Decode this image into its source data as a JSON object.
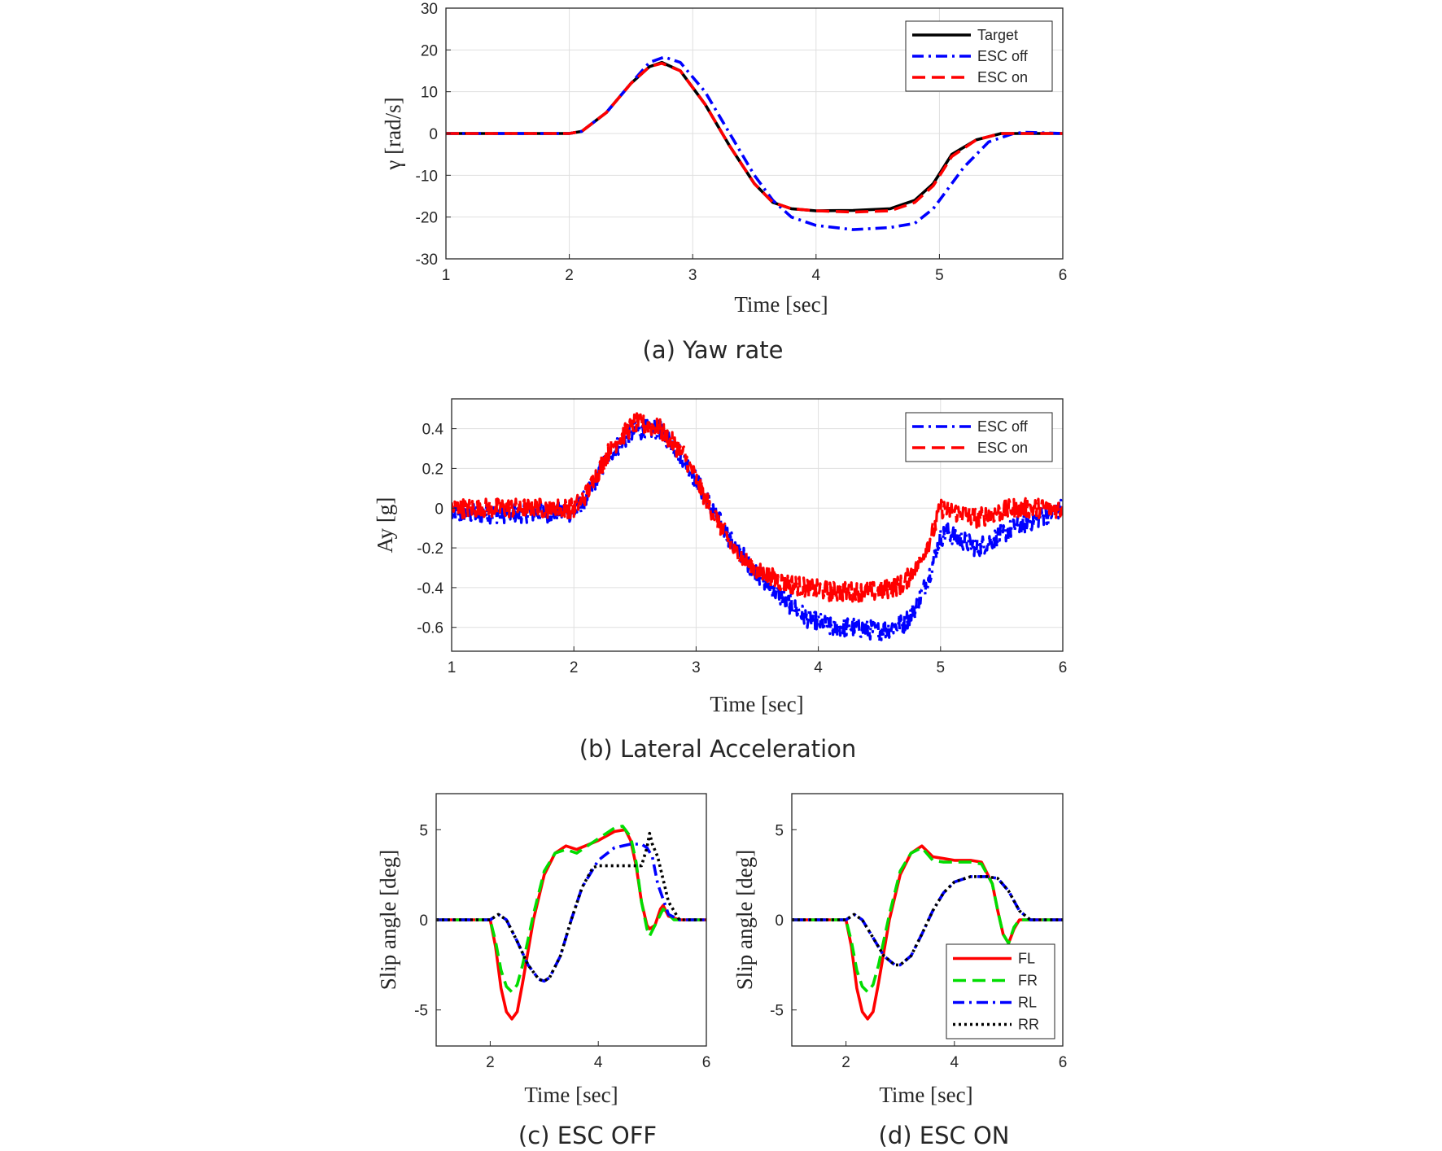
{
  "chart_data": [
    {
      "type": "line",
      "caption": "(a)  Yaw rate",
      "xlabel": "Time [sec]",
      "ylabel": "γ [rad/s]",
      "xlim": [
        1,
        6
      ],
      "ylim": [
        -30,
        30
      ],
      "xticks": [
        1,
        2,
        3,
        4,
        5,
        6
      ],
      "yticks": [
        -30,
        -20,
        -10,
        0,
        10,
        20,
        30
      ],
      "grid": true,
      "legend": "top-right",
      "series": [
        {
          "name": "Target",
          "color": "#000000",
          "style": "solid",
          "x": [
            1.0,
            2.0,
            2.1,
            2.3,
            2.5,
            2.65,
            2.75,
            2.9,
            3.1,
            3.3,
            3.5,
            3.65,
            3.8,
            4.0,
            4.3,
            4.6,
            4.8,
            4.95,
            5.1,
            5.3,
            5.5,
            5.7,
            6.0
          ],
          "y": [
            0,
            0,
            0.5,
            5,
            12,
            16,
            17,
            15,
            7,
            -3,
            -12,
            -16.5,
            -18,
            -18.5,
            -18.4,
            -18,
            -16,
            -12,
            -5,
            -1.5,
            0,
            0,
            0
          ]
        },
        {
          "name": "ESC off",
          "color": "#0000ff",
          "style": "dashdot",
          "x": [
            1.0,
            2.0,
            2.1,
            2.3,
            2.5,
            2.65,
            2.77,
            2.9,
            3.1,
            3.3,
            3.5,
            3.65,
            3.8,
            4.0,
            4.3,
            4.6,
            4.8,
            4.95,
            5.05,
            5.2,
            5.4,
            5.6,
            5.7,
            6.0
          ],
          "y": [
            0,
            0,
            0.5,
            5,
            12,
            17,
            18.3,
            17,
            10,
            0,
            -10,
            -16,
            -20,
            -22,
            -23,
            -22.5,
            -21.5,
            -18,
            -14,
            -8,
            -2,
            0,
            0.3,
            0
          ]
        },
        {
          "name": "ESC on",
          "color": "#ff0000",
          "style": "dashed",
          "x": [
            1.0,
            2.0,
            2.1,
            2.3,
            2.5,
            2.65,
            2.75,
            2.9,
            3.1,
            3.3,
            3.5,
            3.65,
            3.8,
            4.0,
            4.3,
            4.6,
            4.8,
            4.95,
            5.1,
            5.3,
            5.5,
            5.7,
            6.0
          ],
          "y": [
            0,
            0,
            0.5,
            5,
            12,
            16,
            16.8,
            15,
            7,
            -3,
            -12,
            -16.5,
            -18,
            -18.5,
            -18.8,
            -18.5,
            -16.5,
            -12.5,
            -5.5,
            -1.5,
            0,
            0,
            0
          ]
        }
      ]
    },
    {
      "type": "line",
      "caption": "(b)  Lateral Acceleration",
      "xlabel": "Time [sec]",
      "ylabel": "Ay [g]",
      "xlim": [
        1,
        6
      ],
      "ylim": [
        -0.72,
        0.55
      ],
      "xticks": [
        1,
        2,
        3,
        4,
        5,
        6
      ],
      "yticks": [
        -0.6,
        -0.4,
        -0.2,
        0,
        0.2,
        0.4
      ],
      "grid": true,
      "legend": "top-right",
      "noisy": true,
      "series": [
        {
          "name": "ESC off",
          "color": "#0000ff",
          "style": "dashdot",
          "x": [
            1.0,
            2.0,
            2.1,
            2.3,
            2.5,
            2.7,
            2.9,
            3.1,
            3.3,
            3.5,
            3.7,
            3.9,
            4.1,
            4.3,
            4.5,
            4.7,
            4.8,
            4.9,
            4.95,
            5.0,
            5.05,
            5.3,
            5.6,
            6.0
          ],
          "y": [
            -0.03,
            -0.02,
            0.05,
            0.28,
            0.39,
            0.4,
            0.25,
            0.03,
            -0.18,
            -0.33,
            -0.45,
            -0.55,
            -0.6,
            -0.6,
            -0.62,
            -0.58,
            -0.5,
            -0.35,
            -0.25,
            -0.15,
            -0.12,
            -0.2,
            -0.1,
            0
          ]
        },
        {
          "name": "ESC on",
          "color": "#ff0000",
          "style": "dashed",
          "x": [
            1.0,
            2.0,
            2.1,
            2.3,
            2.5,
            2.7,
            2.9,
            3.1,
            3.3,
            3.5,
            3.7,
            3.9,
            4.1,
            4.3,
            4.5,
            4.7,
            4.85,
            4.95,
            5.0,
            5.3,
            5.6,
            6.0
          ],
          "y": [
            0,
            0,
            0.07,
            0.3,
            0.43,
            0.4,
            0.27,
            0.02,
            -0.2,
            -0.32,
            -0.37,
            -0.4,
            -0.42,
            -0.42,
            -0.42,
            -0.38,
            -0.25,
            -0.1,
            0,
            -0.05,
            0,
            0
          ]
        }
      ]
    },
    {
      "type": "line",
      "caption": "(c)  ESC  OFF",
      "xlabel": "Time [sec]",
      "ylabel": "Slip angle [deg]",
      "xlim": [
        1,
        6
      ],
      "ylim": [
        -7,
        7
      ],
      "xticks": [
        2,
        4,
        6
      ],
      "yticks": [
        -5,
        0,
        5
      ],
      "grid": false,
      "series": [
        {
          "name": "FL",
          "color": "#ff0000",
          "style": "solid",
          "x": [
            1.0,
            2.0,
            2.1,
            2.2,
            2.3,
            2.4,
            2.5,
            2.6,
            2.8,
            3.0,
            3.2,
            3.4,
            3.6,
            4.0,
            4.3,
            4.5,
            4.6,
            4.7,
            4.8,
            4.9,
            4.95,
            5.05,
            5.15,
            5.2,
            5.3,
            5.5,
            6.0
          ],
          "y": [
            0,
            0,
            -1.5,
            -3.8,
            -5.1,
            -5.5,
            -5.1,
            -3.5,
            0,
            2.5,
            3.7,
            4.1,
            3.9,
            4.4,
            4.9,
            5.0,
            4.4,
            3.0,
            1.0,
            -0.3,
            -0.5,
            -0.3,
            0.6,
            0.8,
            0.2,
            0,
            0
          ]
        },
        {
          "name": "FR",
          "color": "#00dd00",
          "style": "dashed",
          "x": [
            1.0,
            2.0,
            2.1,
            2.2,
            2.3,
            2.4,
            2.5,
            2.6,
            2.8,
            3.0,
            3.2,
            3.4,
            3.6,
            4.0,
            4.3,
            4.45,
            4.6,
            4.7,
            4.8,
            4.9,
            4.95,
            5.05,
            5.2,
            5.4,
            6.0
          ],
          "y": [
            0,
            0,
            -1.2,
            -2.8,
            -3.7,
            -4.0,
            -3.6,
            -2.5,
            0.3,
            2.7,
            3.7,
            3.9,
            3.7,
            4.5,
            5.1,
            5.2,
            4.6,
            3.2,
            1.0,
            -0.5,
            -0.9,
            -0.3,
            0.6,
            0,
            0
          ]
        },
        {
          "name": "RL",
          "color": "#0000ff",
          "style": "dashdot",
          "x": [
            1.0,
            2.0,
            2.15,
            2.3,
            2.5,
            2.7,
            2.9,
            3.0,
            3.1,
            3.3,
            3.5,
            3.7,
            4.0,
            4.3,
            4.6,
            4.8,
            4.9,
            5.0,
            5.1,
            5.3,
            5.5,
            6.0
          ],
          "y": [
            0,
            0,
            0.3,
            0,
            -1.2,
            -2.5,
            -3.3,
            -3.4,
            -3.2,
            -2.0,
            0,
            1.8,
            3.3,
            4.0,
            4.2,
            4.2,
            4.0,
            3.5,
            2.0,
            0.3,
            0,
            0
          ]
        },
        {
          "name": "RR",
          "color": "#000000",
          "style": "dotted",
          "x": [
            1.0,
            2.0,
            2.15,
            2.3,
            2.5,
            2.7,
            2.9,
            3.0,
            3.1,
            3.3,
            3.5,
            3.7,
            3.9,
            4.0,
            4.3,
            4.6,
            4.8,
            4.9,
            4.95,
            5.0,
            5.1,
            5.3,
            5.5,
            6.0
          ],
          "y": [
            0,
            0,
            0.3,
            0,
            -1.2,
            -2.5,
            -3.3,
            -3.4,
            -3.2,
            -2.0,
            0,
            1.8,
            2.9,
            3.0,
            3.0,
            3.0,
            3.0,
            4.0,
            4.8,
            4.2,
            3.5,
            1.0,
            0,
            0
          ]
        }
      ]
    },
    {
      "type": "line",
      "caption": "(d)  ESC  ON",
      "xlabel": "Time [sec]",
      "ylabel": "Slip angle [deg]",
      "xlim": [
        1,
        6
      ],
      "ylim": [
        -7,
        7
      ],
      "xticks": [
        2,
        4,
        6
      ],
      "yticks": [
        -5,
        0,
        5
      ],
      "grid": false,
      "legend": "bottom-right",
      "series": [
        {
          "name": "FL",
          "color": "#ff0000",
          "style": "solid",
          "x": [
            1.0,
            2.0,
            2.1,
            2.2,
            2.3,
            2.4,
            2.5,
            2.6,
            2.8,
            3.0,
            3.2,
            3.4,
            3.6,
            3.8,
            4.0,
            4.3,
            4.5,
            4.7,
            4.8,
            4.9,
            5.0,
            5.1,
            5.2,
            5.4,
            6.0
          ],
          "y": [
            0,
            0,
            -1.5,
            -3.8,
            -5.1,
            -5.5,
            -5.1,
            -3.5,
            0,
            2.5,
            3.7,
            4.1,
            3.5,
            3.4,
            3.3,
            3.3,
            3.2,
            2.0,
            0.5,
            -0.8,
            -1.3,
            -0.5,
            0,
            0,
            0
          ]
        },
        {
          "name": "FR",
          "color": "#00dd00",
          "style": "dashed",
          "x": [
            1.0,
            2.0,
            2.1,
            2.2,
            2.3,
            2.4,
            2.5,
            2.6,
            2.8,
            3.0,
            3.2,
            3.4,
            3.6,
            3.8,
            4.0,
            4.3,
            4.5,
            4.7,
            4.8,
            4.9,
            5.0,
            5.1,
            5.2,
            5.4,
            6.0
          ],
          "y": [
            0,
            0,
            -1.2,
            -2.8,
            -3.7,
            -4.0,
            -3.6,
            -2.5,
            0.3,
            2.7,
            3.7,
            4.0,
            3.3,
            3.2,
            3.2,
            3.2,
            3.1,
            2.0,
            0.5,
            -0.8,
            -1.3,
            -0.4,
            0,
            0,
            0
          ]
        },
        {
          "name": "RL",
          "color": "#0000ff",
          "style": "dashdot",
          "x": [
            1.0,
            2.0,
            2.15,
            2.3,
            2.5,
            2.7,
            2.9,
            3.0,
            3.2,
            3.4,
            3.6,
            3.8,
            4.0,
            4.3,
            4.6,
            4.8,
            5.0,
            5.2,
            5.4,
            5.6,
            6.0
          ],
          "y": [
            0,
            0,
            0.3,
            0,
            -1.0,
            -2.0,
            -2.5,
            -2.5,
            -2.0,
            -0.8,
            0.5,
            1.5,
            2.1,
            2.4,
            2.4,
            2.3,
            1.6,
            0.5,
            0,
            0,
            0
          ]
        },
        {
          "name": "RR",
          "color": "#000000",
          "style": "dotted",
          "x": [
            1.0,
            2.0,
            2.15,
            2.3,
            2.5,
            2.7,
            2.9,
            3.0,
            3.2,
            3.4,
            3.6,
            3.8,
            4.0,
            4.3,
            4.6,
            4.8,
            5.0,
            5.2,
            5.4,
            5.6,
            6.0
          ],
          "y": [
            0,
            0,
            0.3,
            0,
            -1.0,
            -2.0,
            -2.5,
            -2.5,
            -2.0,
            -0.8,
            0.5,
            1.5,
            2.1,
            2.4,
            2.4,
            2.3,
            1.6,
            0.5,
            0,
            0,
            0
          ]
        }
      ]
    }
  ]
}
